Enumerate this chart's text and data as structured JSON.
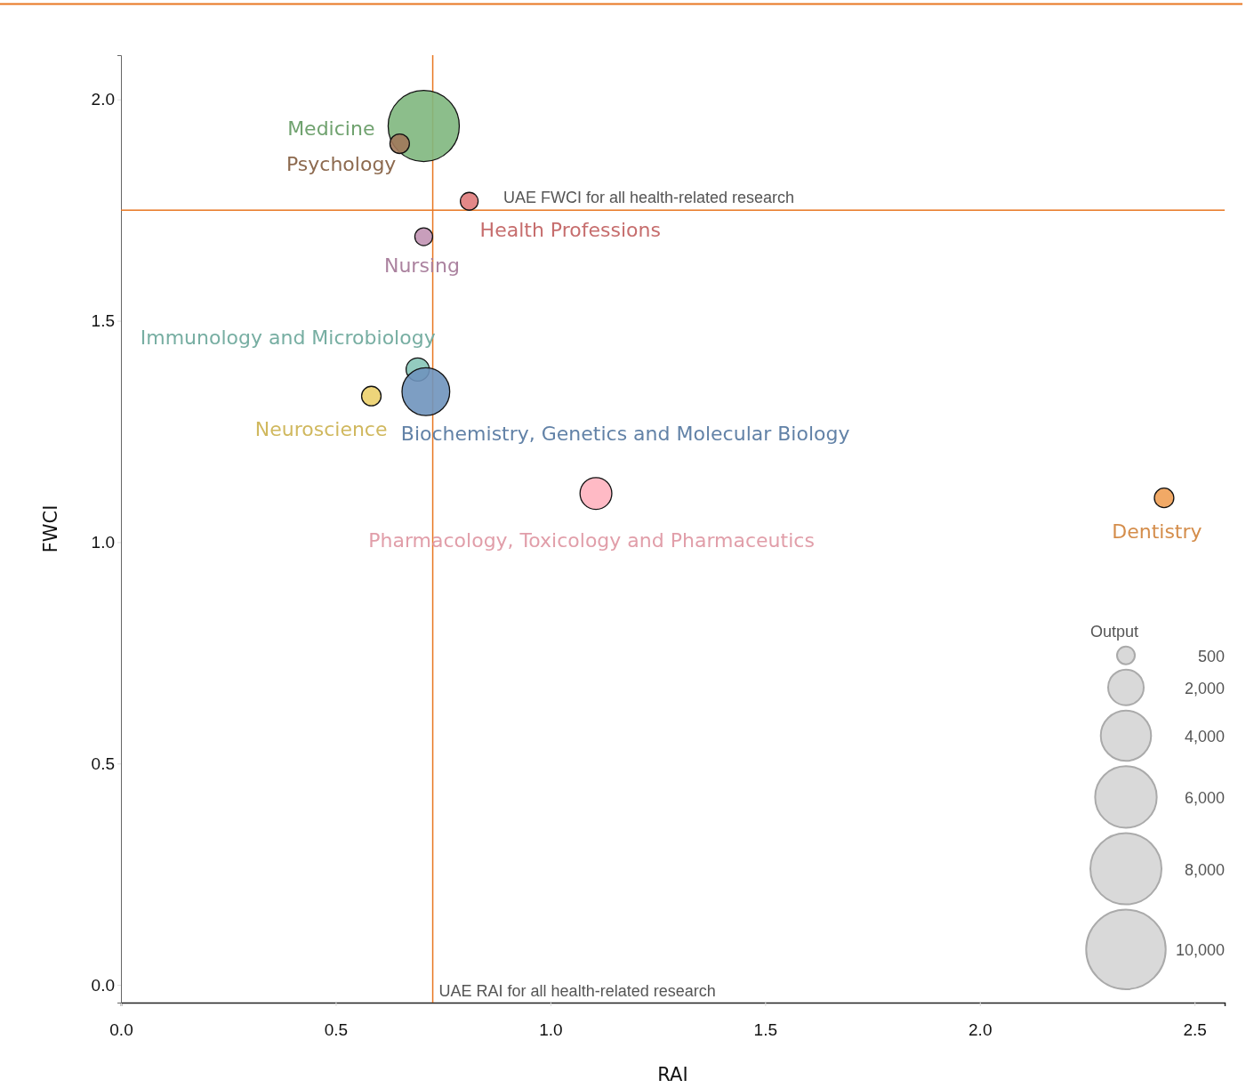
{
  "chart_data": {
    "type": "bubble",
    "xlabel": "RAI",
    "ylabel": "FWCI",
    "legend_title": "Output",
    "legend": "bottom right",
    "marker": "circle",
    "xlim": [
      0,
      2.57
    ],
    "ylim": [
      -0.04,
      2.1
    ],
    "xticks": [
      {
        "value": 0,
        "label": "0.0"
      },
      {
        "value": 0.5,
        "label": "0.5"
      },
      {
        "value": 1,
        "label": "1.0"
      },
      {
        "value": 1.5,
        "label": "1.5"
      },
      {
        "value": 2,
        "label": "2.0"
      },
      {
        "value": 2.5,
        "label": "2.5"
      }
    ],
    "yticks": [
      {
        "value": 0,
        "label": "0.0"
      },
      {
        "value": 0.5,
        "label": "0.5"
      },
      {
        "value": 1,
        "label": "1.0"
      },
      {
        "value": 1.5,
        "label": "1.5"
      },
      {
        "value": 2,
        "label": "2.0"
      }
    ],
    "size_legend": [
      500,
      {
        "value": 2000,
        "label": "2,000"
      },
      {
        "value": 4000,
        "label": "4,000"
      },
      {
        "value": 6000,
        "label": "6,000"
      },
      {
        "value": 8000,
        "label": "8,000"
      },
      {
        "value": 10000,
        "label": "10,000"
      }
    ],
    "series": [
      {
        "name": "Medicine",
        "color": "#7fb77e",
        "x": [
          0.705
        ],
        "values": [
          1.94
        ],
        "sizes": [
          8000
        ]
      },
      {
        "name": "Psychology",
        "color": "#a0785a",
        "x": [
          0.649
        ],
        "values": [
          1.9
        ],
        "sizes": [
          600
        ]
      },
      {
        "name": "Health Professions",
        "color": "#e07b7b",
        "x": [
          0.811
        ],
        "values": [
          1.77
        ],
        "sizes": [
          500
        ]
      },
      {
        "name": "Nursing",
        "color": "#c293b4",
        "x": [
          0.705
        ],
        "values": [
          1.69
        ],
        "sizes": [
          500
        ]
      },
      {
        "name": "Immunology and Microbiology",
        "color": "#87c5b8",
        "x": [
          0.691
        ],
        "values": [
          1.39
        ],
        "sizes": [
          850
        ]
      },
      {
        "name": "Biochemistry, Genetics and Molecular Biology",
        "color": "#6f93bd",
        "x": [
          0.71
        ],
        "values": [
          1.34
        ],
        "sizes": [
          3600
        ]
      },
      {
        "name": "Neuroscience",
        "color": "#ecd06b",
        "x": [
          0.583
        ],
        "values": [
          1.33
        ],
        "sizes": [
          600
        ]
      },
      {
        "name": "Pharmacology, Toxicology and Pharmaceutics",
        "color": "#ffb3bf",
        "x": [
          1.106
        ],
        "values": [
          1.11
        ],
        "sizes": [
          1600
        ]
      },
      {
        "name": "Dentistry",
        "color": "#f0a055",
        "x": [
          2.429
        ],
        "values": [
          1.1
        ],
        "sizes": [
          600
        ]
      }
    ],
    "ref_lines": [
      {
        "axis": "y",
        "value": 1.75,
        "label": "UAE FWCI for all health-related research",
        "color": "#e87722"
      },
      {
        "axis": "x",
        "value": 0.726,
        "label": "UAE RAI for all health-related research",
        "color": "#e87722"
      }
    ]
  }
}
